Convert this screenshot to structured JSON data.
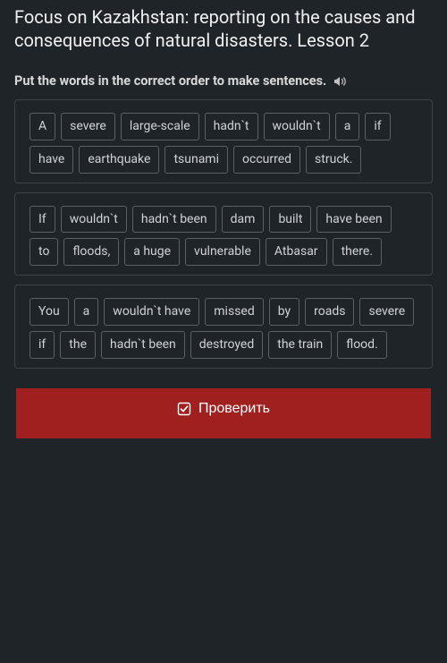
{
  "lesson": {
    "title": "Focus on Kazakhstan: reporting on the causes and consequences of natural disasters. Lesson 2"
  },
  "task": {
    "instructions": "Put the words in the correct order to make sentences."
  },
  "sentences": [
    {
      "words": [
        "A",
        "severe",
        "large-scale",
        "hadn`t",
        "wouldn`t",
        "a",
        "if",
        "have",
        "earthquake",
        "tsunami",
        "occurred",
        "struck."
      ]
    },
    {
      "words": [
        "If",
        "wouldn`t",
        "hadn`t been",
        "dam",
        "built",
        "have been",
        "to",
        "floods,",
        "a huge",
        "vulnerable",
        "Atbasar",
        "there."
      ]
    },
    {
      "words": [
        "You",
        "a",
        "wouldn`t have",
        "missed",
        "by",
        "roads",
        "severe",
        "if",
        "the",
        "hadn`t been",
        "destroyed",
        "the train",
        "flood."
      ]
    }
  ],
  "actions": {
    "check_label": "Проверить"
  },
  "colors": {
    "background": "#1f2428",
    "text": "#e6e6e6",
    "box_border": "#3d4348",
    "chip_border": "#5a6168",
    "chip_text": "#cfd3d6",
    "button_bg": "#a01f1f",
    "button_text": "#ffffff"
  },
  "typography": {
    "title_fontsize": 20,
    "instructions_fontsize": 14.5,
    "chip_fontsize": 14,
    "button_fontsize": 16
  }
}
